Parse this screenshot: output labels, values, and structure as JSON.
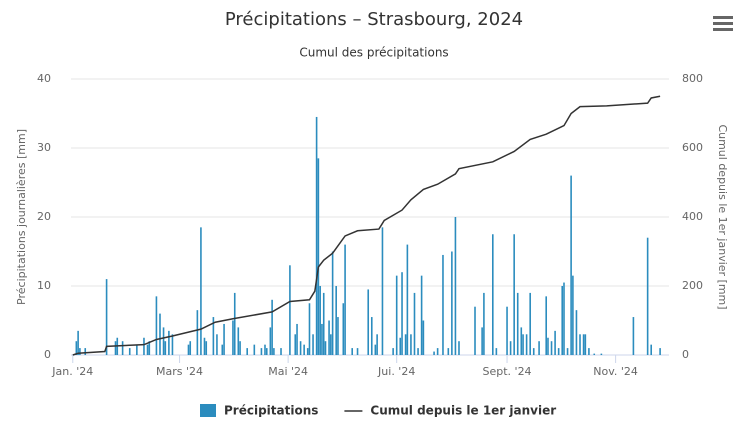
{
  "chart_data": {
    "type": "bar",
    "title": "Précipitations – Strasbourg, 2024",
    "subtitle": "Cumul des précipitations",
    "y_label": "Précipitations journalières [mm]",
    "y2_label": "Cumul depuis le 1er janvier [mm]",
    "xlim": [
      -1,
      335
    ],
    "xticks": [
      {
        "value": 0,
        "label": "Jan. '24"
      },
      {
        "value": 60,
        "label": "Mars '24"
      },
      {
        "value": 121,
        "label": "Mai '24"
      },
      {
        "value": 182,
        "label": "Jui. '24"
      },
      {
        "value": 244,
        "label": "Sept. '24"
      },
      {
        "value": 305,
        "label": "Nov. '24"
      }
    ],
    "ylim": [
      0,
      40
    ],
    "yticks": [
      0,
      10,
      20,
      30,
      40
    ],
    "y2lim": [
      0,
      800
    ],
    "y2ticks": [
      0,
      200,
      400,
      600,
      800
    ],
    "grid": true,
    "legend": "bottom",
    "series": [
      {
        "name": "Précipitations",
        "type": "bar",
        "color": "#2b8cbe",
        "x": [
          2,
          3,
          4,
          7,
          19,
          24,
          25,
          28,
          32,
          36,
          40,
          42,
          43,
          47,
          49,
          51,
          52,
          54,
          56,
          65,
          66,
          70,
          72,
          74,
          75,
          79,
          81,
          84,
          85,
          90,
          91,
          93,
          94,
          98,
          102,
          106,
          108,
          109,
          111,
          112,
          113,
          117,
          122,
          125,
          126,
          128,
          130,
          132,
          133,
          135,
          137,
          138,
          139,
          140,
          141,
          142,
          144,
          145,
          146,
          148,
          149,
          152,
          153,
          157,
          160,
          166,
          168,
          170,
          171,
          174,
          180,
          182,
          184,
          185,
          187,
          188,
          190,
          192,
          194,
          196,
          197,
          203,
          205,
          208,
          211,
          213,
          215,
          217,
          226,
          230,
          231,
          236,
          238,
          244,
          246,
          248,
          250,
          252,
          253,
          255,
          257,
          259,
          262,
          266,
          267,
          269,
          271,
          273,
          275,
          276,
          278,
          280,
          281,
          283,
          285,
          287,
          288,
          290,
          293,
          297,
          315,
          323,
          325,
          330
        ],
        "values": [
          2,
          3.5,
          1,
          1,
          11,
          2,
          2.5,
          2,
          1,
          1.5,
          2.5,
          1.5,
          2,
          8.5,
          6,
          4,
          2,
          3.5,
          3,
          1.5,
          2,
          6.5,
          18.5,
          2.5,
          2,
          5.5,
          3,
          1.5,
          4.5,
          5,
          9,
          4,
          2,
          1,
          1.5,
          1,
          1.5,
          1,
          4,
          8,
          1,
          1,
          13,
          3,
          4.5,
          2,
          1.5,
          1,
          7.5,
          3,
          34.5,
          28.5,
          10,
          4.5,
          9,
          2,
          5,
          3,
          15,
          10,
          5.5,
          7.5,
          16,
          1,
          1,
          9.5,
          5.5,
          1.5,
          3,
          18.5,
          1,
          11.5,
          2.5,
          12,
          3,
          16,
          3,
          9,
          1,
          11.5,
          5,
          0.5,
          1,
          14.5,
          1,
          15,
          20,
          2,
          7,
          4,
          9,
          17.5,
          1,
          7,
          2,
          17.5,
          9,
          4,
          3,
          3,
          9,
          1,
          2,
          8.5,
          2.5,
          2,
          3.5,
          1,
          10,
          10.5,
          1,
          26,
          11.5,
          6.5,
          3,
          3,
          3,
          1,
          0.2,
          0.2,
          5.5,
          17,
          1.5,
          1
        ]
      },
      {
        "name": "Cumul depuis le 1er janvier",
        "type": "line",
        "axis": "y2",
        "color": "#333333",
        "x": [
          0,
          3,
          18,
          19,
          40,
          47,
          56,
          72,
          80,
          90,
          112,
          122,
          133,
          136,
          138,
          141,
          146,
          153,
          160,
          172,
          175,
          185,
          190,
          197,
          205,
          215,
          217,
          236,
          248,
          257,
          266,
          276,
          280,
          285,
          300,
          323,
          325,
          330
        ],
        "values": [
          0,
          5,
          10,
          25,
          30,
          45,
          55,
          75,
          95,
          105,
          125,
          155,
          160,
          185,
          255,
          275,
          295,
          345,
          360,
          365,
          390,
          420,
          450,
          480,
          495,
          525,
          540,
          560,
          590,
          625,
          640,
          665,
          700,
          720,
          722,
          730,
          745,
          750
        ]
      }
    ]
  }
}
